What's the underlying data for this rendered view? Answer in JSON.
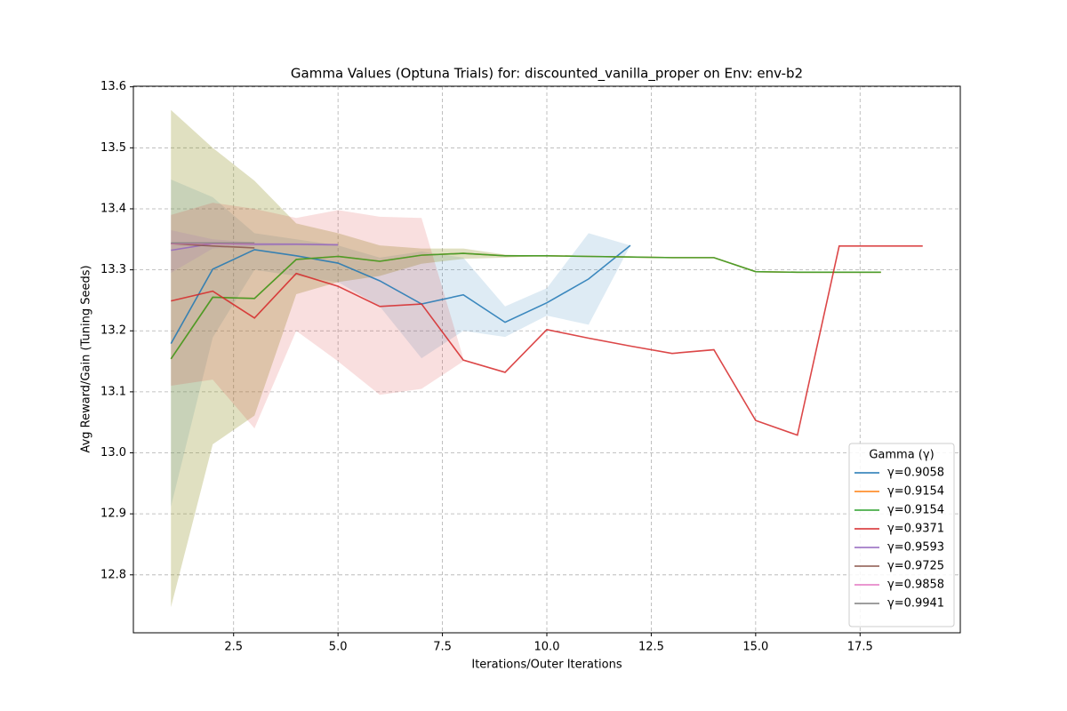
{
  "chart_data": {
    "type": "line",
    "title": "Gamma Values (Optuna Trials) for: discounted_vanilla_proper on Env: env-b2",
    "xlabel": "Iterations/Outer Iterations",
    "ylabel": "Avg Reward/Gain (Tuning Seeds)",
    "xlim": [
      0.1,
      19.9
    ],
    "ylim": [
      12.705,
      13.601
    ],
    "xticks": [
      2.5,
      {
        "value": 5,
        "label": "5.0"
      },
      7.5,
      {
        "value": 10,
        "label": "10.0"
      },
      12.5,
      {
        "value": 15,
        "label": "15.0"
      },
      17.5
    ],
    "yticks": [
      {
        "value": 12.8,
        "label": "12.8"
      },
      {
        "value": 12.9,
        "label": "12.9"
      },
      {
        "value": 13,
        "label": "13.0"
      },
      {
        "value": 13.1,
        "label": "13.1"
      },
      {
        "value": 13.2,
        "label": "13.2"
      },
      {
        "value": 13.3,
        "label": "13.3"
      },
      {
        "value": 13.4,
        "label": "13.4"
      },
      {
        "value": 13.5,
        "label": "13.5"
      },
      {
        "value": 13.6,
        "label": "13.6"
      }
    ],
    "grid": true,
    "legend_title": "Gamma (γ)",
    "legend_position": "lower right",
    "series": [
      {
        "name": "γ=0.9058",
        "color": "#1f77b4",
        "x": [
          1,
          2,
          3,
          4,
          5,
          6,
          7,
          8,
          9,
          10,
          11,
          12
        ],
        "values": [
          13.179,
          13.301,
          13.333,
          13.323,
          13.311,
          13.282,
          13.244,
          13.259,
          13.214,
          13.246,
          13.285,
          13.34
        ],
        "upper": [
          13.448,
          13.419,
          13.36,
          13.35,
          13.34,
          13.32,
          13.33,
          13.32,
          13.24,
          13.27,
          13.36,
          13.34
        ],
        "lower": [
          12.912,
          13.189,
          13.3,
          13.29,
          13.28,
          13.24,
          13.155,
          13.2,
          13.19,
          13.225,
          13.21,
          13.34
        ]
      },
      {
        "name": "γ=0.9154",
        "color": "#ff7f0e",
        "x": [
          1,
          2,
          3,
          4,
          5,
          6,
          7,
          8,
          9,
          10,
          11,
          12,
          13,
          14,
          15,
          16,
          17,
          18
        ],
        "values": [
          13.154,
          13.255,
          13.253,
          13.317,
          13.322,
          13.314,
          13.324,
          13.327,
          13.323,
          13.323,
          13.322,
          13.321,
          13.32,
          13.32,
          13.297,
          13.296,
          13.296,
          13.296
        ],
        "upper": [
          13.562,
          13.5,
          13.446,
          13.376,
          13.36,
          13.34,
          13.335,
          13.335,
          13.325,
          13.323,
          13.322,
          13.321,
          13.32,
          13.32,
          13.297,
          13.296,
          13.296,
          13.296
        ],
        "lower": [
          12.747,
          13.014,
          13.061,
          13.26,
          13.28,
          13.29,
          13.31,
          13.318,
          13.32,
          13.323,
          13.322,
          13.321,
          13.32,
          13.32,
          13.297,
          13.296,
          13.296,
          13.296
        ]
      },
      {
        "name": "γ=0.9154",
        "color": "#2ca02c",
        "x": [
          1,
          2,
          3,
          4,
          5,
          6,
          7,
          8,
          9,
          10,
          11,
          12,
          13,
          14,
          15,
          16,
          17,
          18
        ],
        "values": [
          13.154,
          13.255,
          13.253,
          13.317,
          13.322,
          13.314,
          13.324,
          13.327,
          13.323,
          13.323,
          13.322,
          13.321,
          13.32,
          13.32,
          13.297,
          13.296,
          13.296,
          13.296
        ],
        "upper": [
          13.562,
          13.5,
          13.446,
          13.376,
          13.36,
          13.34,
          13.335,
          13.335,
          13.325,
          13.323,
          13.322,
          13.321,
          13.32,
          13.32,
          13.297,
          13.296,
          13.296,
          13.296
        ],
        "lower": [
          12.747,
          13.014,
          13.061,
          13.26,
          13.28,
          13.29,
          13.31,
          13.318,
          13.32,
          13.323,
          13.322,
          13.321,
          13.32,
          13.32,
          13.297,
          13.296,
          13.296,
          13.296
        ]
      },
      {
        "name": "γ=0.9371",
        "color": "#d62728",
        "x": [
          1,
          2,
          3,
          4,
          5,
          6,
          7,
          8,
          9,
          10,
          11,
          12,
          13,
          14,
          15,
          16,
          17,
          18,
          19
        ],
        "values": [
          13.249,
          13.265,
          13.221,
          13.294,
          13.273,
          13.24,
          13.244,
          13.152,
          13.132,
          13.202,
          13.188,
          13.175,
          13.163,
          13.169,
          13.053,
          13.029,
          13.339,
          13.339,
          13.339
        ],
        "upper": [
          13.39,
          13.41,
          13.4,
          13.385,
          13.398,
          13.387,
          13.385,
          13.155,
          null,
          null,
          null,
          null,
          null,
          null,
          null,
          null,
          null,
          null,
          null
        ],
        "lower": [
          13.11,
          13.12,
          13.04,
          13.2,
          13.15,
          13.095,
          13.105,
          13.15,
          null,
          null,
          null,
          null,
          null,
          null,
          null,
          null,
          null,
          null,
          null
        ]
      },
      {
        "name": "γ=0.9593",
        "color": "#9467bd",
        "x": [
          1,
          2,
          3,
          4,
          5
        ],
        "values": [
          13.332,
          13.343,
          13.342,
          13.342,
          13.341
        ],
        "upper": [
          13.365,
          13.35,
          13.345,
          13.344,
          13.343
        ],
        "lower": [
          13.295,
          13.335,
          13.339,
          13.34,
          13.339
        ]
      },
      {
        "name": "γ=0.9725",
        "color": "#8c564b",
        "x": [
          1,
          2,
          3
        ],
        "values": [
          13.343,
          13.339,
          13.336
        ]
      },
      {
        "name": "γ=0.9858",
        "color": "#e377c2",
        "x": [
          1,
          2,
          3
        ],
        "values": [
          13.343,
          13.343,
          13.343
        ]
      },
      {
        "name": "γ=0.9941",
        "color": "#7f7f7f",
        "x": [
          1,
          2,
          3
        ],
        "values": [
          13.344,
          13.344,
          13.344
        ]
      }
    ]
  }
}
